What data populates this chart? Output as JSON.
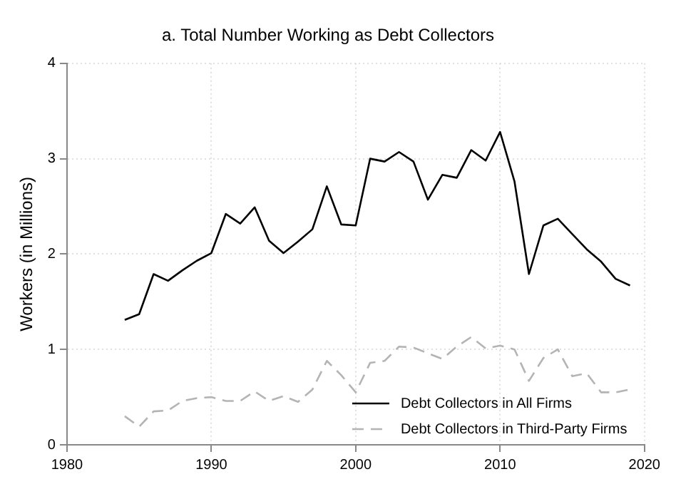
{
  "chart_data": {
    "type": "line",
    "title": "a. Total Number Working as Debt Collectors",
    "ylabel": "Workers (in Millions)",
    "x": [
      1984,
      1985,
      1986,
      1987,
      1988,
      1989,
      1990,
      1991,
      1992,
      1993,
      1994,
      1995,
      1996,
      1997,
      1998,
      1999,
      2000,
      2001,
      2002,
      2003,
      2004,
      2005,
      2006,
      2007,
      2008,
      2009,
      2010,
      2011,
      2012,
      2013,
      2014,
      2015,
      2016,
      2017,
      2018,
      2019
    ],
    "series": [
      {
        "name": "Debt Collectors in All Firms",
        "color": "#000000",
        "line_style": "solid",
        "values": [
          1.31,
          1.37,
          1.79,
          1.72,
          1.83,
          1.93,
          2.01,
          2.42,
          2.32,
          2.49,
          2.14,
          2.01,
          2.13,
          2.26,
          2.71,
          2.31,
          2.3,
          3.0,
          2.97,
          3.07,
          2.97,
          2.57,
          2.83,
          2.8,
          3.09,
          2.98,
          3.28,
          2.76,
          1.79,
          2.3,
          2.37,
          2.21,
          2.05,
          1.92,
          1.74,
          1.67
        ]
      },
      {
        "name": "Debt Collectors in Third-Party Firms",
        "color": "#b4b4b4",
        "line_style": "dashed",
        "values": [
          0.3,
          0.19,
          0.35,
          0.36,
          0.46,
          0.49,
          0.5,
          0.46,
          0.46,
          0.56,
          0.46,
          0.51,
          0.45,
          0.58,
          0.88,
          0.73,
          0.55,
          0.86,
          0.88,
          1.03,
          1.02,
          0.96,
          0.9,
          1.03,
          1.13,
          1.01,
          1.04,
          1.0,
          0.67,
          0.91,
          1.0,
          0.72,
          0.75,
          0.55,
          0.55,
          0.58
        ]
      }
    ],
    "xlim": [
      1980,
      2020
    ],
    "xticks": [
      1980,
      1990,
      2000,
      2010,
      2020
    ],
    "ylim": [
      0,
      4
    ],
    "yticks": [
      0,
      1,
      2,
      3,
      4
    ],
    "grid": true,
    "legend": "bottom right",
    "marker": "none"
  }
}
